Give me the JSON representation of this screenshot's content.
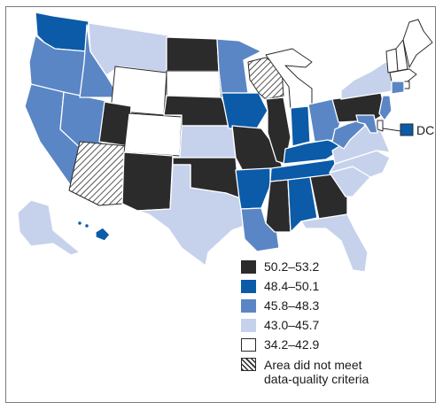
{
  "colors": {
    "c1": "#2b2b2b",
    "c2": "#0b5ba8",
    "c3": "#5b86c5",
    "c4": "#c6d2ec",
    "c5": "#ffffff"
  },
  "dc": {
    "label": "DC",
    "category": "c2"
  },
  "legend": [
    {
      "label": "50.2–53.2",
      "category": "c1"
    },
    {
      "label": "48.4–50.1",
      "category": "c2"
    },
    {
      "label": "45.8–48.3",
      "category": "c3"
    },
    {
      "label": "43.0–45.7",
      "category": "c4"
    },
    {
      "label": "34.2–42.9",
      "category": "c5"
    },
    {
      "label": "Area did not meet data-quality criteria",
      "label_line1": "Area did not meet",
      "label_line2": "data-quality criteria",
      "category": "na"
    }
  ],
  "states": {
    "WA": "c2",
    "OR": "c3",
    "CA": "c3",
    "NV": "c3",
    "ID": "c3",
    "MT": "c4",
    "WY": "c5",
    "UT": "c1",
    "AZ": "na",
    "CO": "c5",
    "NM": "c1",
    "ND": "c1",
    "SD": "c5",
    "NE": "c1",
    "KS": "c4",
    "OK": "c1",
    "TX": "c4",
    "MN": "c3",
    "IA": "c2",
    "MO": "c1",
    "AR": "c2",
    "LA": "c3",
    "WI": "na",
    "IL": "c1",
    "MI": "c5",
    "IN": "c2",
    "OH": "c3",
    "KY": "c2",
    "TN": "c2",
    "MS": "c1",
    "AL": "c2",
    "GA": "c1",
    "FL": "c4",
    "SC": "c4",
    "NC": "c4",
    "VA": "c4",
    "WV": "c3",
    "PA": "c1",
    "NY": "c4",
    "VT": "c5",
    "NH": "c5",
    "ME": "c5",
    "MA": "c5",
    "RI": "c5",
    "CT": "c3",
    "NJ": "c3",
    "DE": "c5",
    "MD": "c3",
    "AK": "c4",
    "HI": "c2"
  }
}
